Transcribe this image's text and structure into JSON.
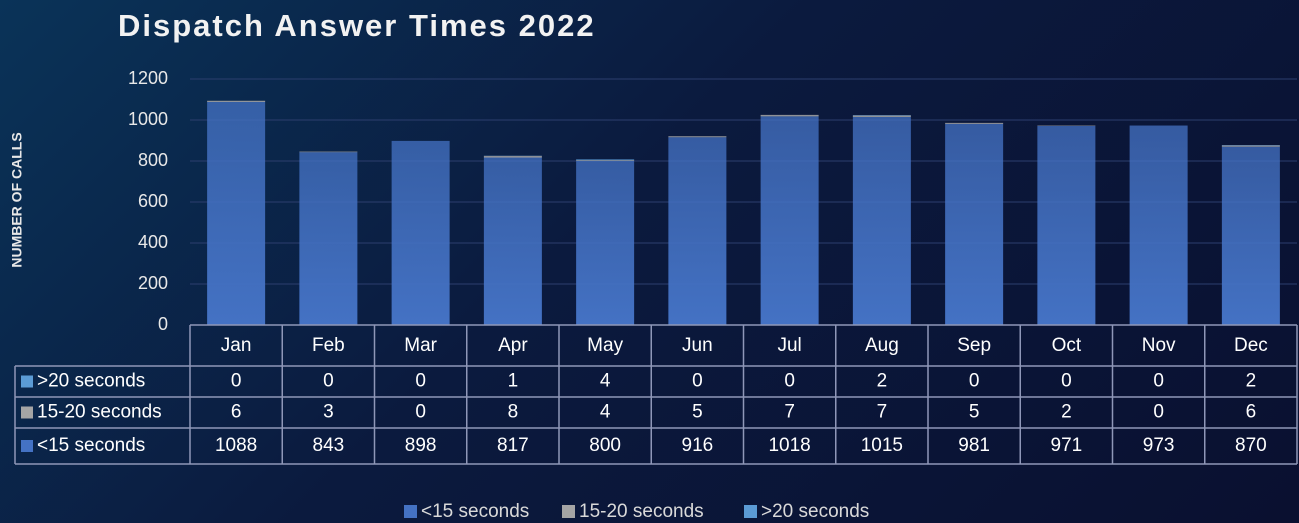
{
  "chart_data": {
    "type": "stacked_bar",
    "title": "Dispatch Answer Times 2022",
    "y_label": "NUMBER OF CALLS",
    "categories": [
      "Jan",
      "Feb",
      "Mar",
      "Apr",
      "May",
      "Jun",
      "Jul",
      "Aug",
      "Sep",
      "Oct",
      "Nov",
      "Dec"
    ],
    "series": [
      {
        "name": "<15 seconds",
        "color": "#4472c4",
        "values": [
          1088,
          843,
          898,
          817,
          800,
          916,
          1018,
          1015,
          981,
          971,
          973,
          870
        ]
      },
      {
        "name": "15-20 seconds",
        "color": "#a5a5a5",
        "values": [
          6,
          3,
          0,
          8,
          4,
          5,
          7,
          7,
          5,
          2,
          0,
          6
        ]
      },
      {
        "name": ">20 seconds",
        "color": "#5b9bd5",
        "values": [
          0,
          0,
          0,
          1,
          4,
          0,
          0,
          2,
          0,
          0,
          0,
          2
        ]
      }
    ],
    "ylim": [
      0,
      1200
    ],
    "yticks": [
      0,
      200,
      400,
      600,
      800,
      1000,
      1200
    ],
    "grid": true,
    "legend": "bottom"
  }
}
